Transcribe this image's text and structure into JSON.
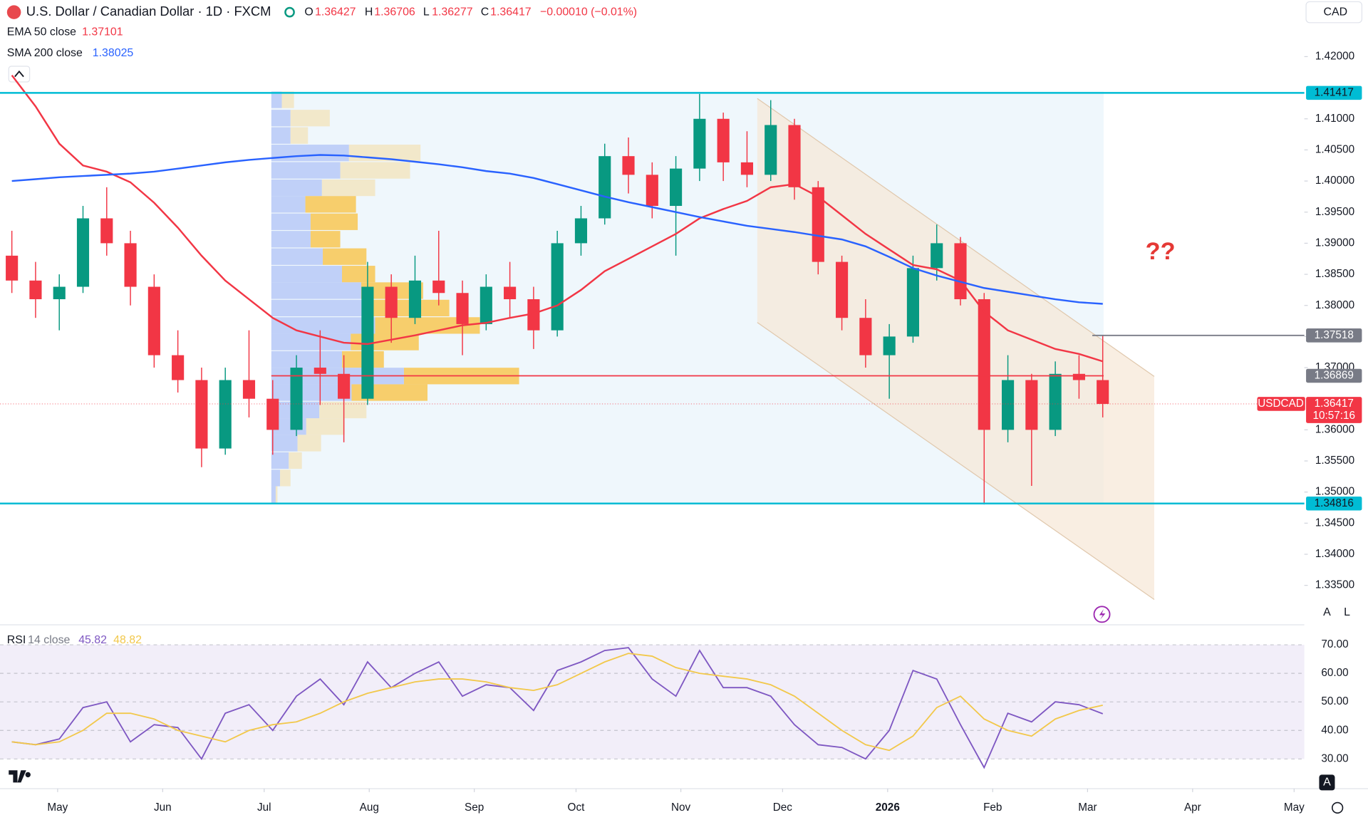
{
  "header": {
    "symbol_title": "U.S. Dollar / Canadian Dollar · 1D · FXCM",
    "o_label": "O",
    "open": "1.36427",
    "h_label": "H",
    "high": "1.36706",
    "l_label": "L",
    "low": "1.36277",
    "c_label": "C",
    "close": "1.36417",
    "change": "−0.00010 (−0.01%)",
    "currency": "CAD",
    "scale_buttons": [
      "A",
      "L"
    ],
    "rsi_scale_button": "A"
  },
  "chart_data": [
    {
      "type": "candlestick",
      "up_color": "#089981",
      "down_color": "#f23645",
      "open": [
        1.388,
        1.384,
        1.381,
        1.383,
        1.394,
        1.39,
        1.383,
        1.372,
        1.368,
        1.357,
        1.368,
        1.365,
        1.36,
        1.37,
        1.369,
        1.365,
        1.383,
        1.378,
        1.384,
        1.382,
        1.377,
        1.383,
        1.381,
        1.376,
        1.39,
        1.394,
        1.404,
        1.401,
        1.396,
        1.402,
        1.41,
        1.403,
        1.401,
        1.409,
        1.399,
        1.387,
        1.378,
        1.372,
        1.375,
        1.386,
        1.39,
        1.381,
        1.36,
        1.368,
        1.36,
        1.369,
        1.368
      ],
      "high": [
        1.392,
        1.387,
        1.385,
        1.396,
        1.399,
        1.392,
        1.385,
        1.376,
        1.37,
        1.37,
        1.376,
        1.368,
        1.372,
        1.376,
        1.372,
        1.387,
        1.385,
        1.388,
        1.392,
        1.384,
        1.385,
        1.387,
        1.383,
        1.392,
        1.396,
        1.406,
        1.407,
        1.403,
        1.404,
        1.414,
        1.411,
        1.408,
        1.413,
        1.41,
        1.4,
        1.388,
        1.381,
        1.377,
        1.388,
        1.393,
        1.391,
        1.382,
        1.372,
        1.369,
        1.371,
        1.372,
        1.3752
      ],
      "low": [
        1.382,
        1.378,
        1.376,
        1.382,
        1.388,
        1.38,
        1.37,
        1.366,
        1.354,
        1.356,
        1.362,
        1.356,
        1.359,
        1.364,
        1.358,
        1.364,
        1.374,
        1.377,
        1.38,
        1.372,
        1.376,
        1.378,
        1.373,
        1.375,
        1.388,
        1.393,
        1.398,
        1.394,
        1.388,
        1.4,
        1.4,
        1.399,
        1.4,
        1.397,
        1.385,
        1.376,
        1.37,
        1.365,
        1.374,
        1.384,
        1.38,
        1.348,
        1.358,
        1.351,
        1.359,
        1.365,
        1.362
      ],
      "close": [
        1.384,
        1.381,
        1.383,
        1.394,
        1.39,
        1.383,
        1.372,
        1.368,
        1.357,
        1.368,
        1.365,
        1.36,
        1.37,
        1.369,
        1.365,
        1.383,
        1.378,
        1.384,
        1.382,
        1.377,
        1.383,
        1.381,
        1.376,
        1.39,
        1.394,
        1.404,
        1.401,
        1.396,
        1.402,
        1.41,
        1.403,
        1.401,
        1.409,
        1.399,
        1.387,
        1.378,
        1.372,
        1.375,
        1.386,
        1.39,
        1.381,
        1.36,
        1.368,
        1.36,
        1.369,
        1.368,
        1.36417
      ],
      "series": [
        {
          "name": "EMA 50 close",
          "color": "#f23645",
          "values": [
            1.417,
            1.412,
            1.406,
            1.4025,
            1.4015,
            1.3998,
            1.3965,
            1.3925,
            1.388,
            1.384,
            1.381,
            1.378,
            1.376,
            1.375,
            1.374,
            1.3738,
            1.3745,
            1.3752,
            1.376,
            1.3768,
            1.3772,
            1.378,
            1.3787,
            1.38,
            1.3825,
            1.3855,
            1.3875,
            1.3895,
            1.3915,
            1.394,
            1.3955,
            1.3968,
            1.399,
            1.3995,
            1.3975,
            1.3945,
            1.3915,
            1.389,
            1.3865,
            1.3858,
            1.384,
            1.379,
            1.376,
            1.3745,
            1.373,
            1.3722,
            1.37101
          ]
        },
        {
          "name": "SMA 200 close",
          "color": "#2962ff",
          "values": [
            1.4,
            1.4003,
            1.4006,
            1.4008,
            1.401,
            1.4012,
            1.4015,
            1.402,
            1.4025,
            1.403,
            1.4034,
            1.4037,
            1.404,
            1.4042,
            1.4041,
            1.4038,
            1.4035,
            1.4031,
            1.4027,
            1.4022,
            1.4016,
            1.4012,
            1.4005,
            1.3995,
            1.3985,
            1.3975,
            1.3966,
            1.3958,
            1.395,
            1.3942,
            1.3935,
            1.3928,
            1.3923,
            1.3918,
            1.3912,
            1.3906,
            1.3895,
            1.3878,
            1.386,
            1.3848,
            1.3838,
            1.3828,
            1.3822,
            1.3816,
            1.381,
            1.3805,
            1.38025
          ]
        }
      ],
      "xlim": [
        0,
        55
      ],
      "xticks": [
        {
          "value": 2.43,
          "label": "May"
        },
        {
          "value": 6.86,
          "label": "Jun"
        },
        {
          "value": 11.14,
          "label": "Jul"
        },
        {
          "value": 15.57,
          "label": "Aug"
        },
        {
          "value": 20.0,
          "label": "Sep"
        },
        {
          "value": 24.29,
          "label": "Oct"
        },
        {
          "value": 28.71,
          "label": "Nov"
        },
        {
          "value": 33.0,
          "label": "Dec"
        },
        {
          "value": 37.43,
          "label": "2026"
        },
        {
          "value": 41.86,
          "label": "Feb"
        },
        {
          "value": 45.86,
          "label": "Mar"
        },
        {
          "value": 50.29,
          "label": "Apr"
        },
        {
          "value": 54.57,
          "label": "May"
        }
      ],
      "ylim": [
        1.3288,
        1.4291
      ],
      "yticks": [
        {
          "value": 1.335,
          "label": "1.33500"
        },
        {
          "value": 1.34,
          "label": "1.34000"
        },
        {
          "value": 1.345,
          "label": "1.34500"
        },
        {
          "value": 1.35,
          "label": "1.35000"
        },
        {
          "value": 1.355,
          "label": "1.35500"
        },
        {
          "value": 1.36,
          "label": "1.36000"
        },
        {
          "value": 1.37,
          "label": "1.37000"
        },
        {
          "value": 1.375,
          "label": "1.37500"
        },
        {
          "value": 1.38,
          "label": "1.38000"
        },
        {
          "value": 1.385,
          "label": "1.38500"
        },
        {
          "value": 1.39,
          "label": "1.39000"
        },
        {
          "value": 1.395,
          "label": "1.39500"
        },
        {
          "value": 1.4,
          "label": "1.40000"
        },
        {
          "value": 1.405,
          "label": "1.40500"
        },
        {
          "value": 1.41,
          "label": "1.41000"
        },
        {
          "value": 1.42,
          "label": "1.42000"
        }
      ],
      "levels": [
        {
          "value": 1.41417,
          "color": "#00bcd4",
          "label_color": "#00bcd4"
        },
        {
          "value": 1.34816,
          "color": "#00bcd4",
          "label_color": "#00bcd4"
        },
        {
          "value": 1.37518,
          "color": "#787b86",
          "label_color": "#787b86"
        },
        {
          "value": 1.36869,
          "color": "#f23645",
          "label_color": "#787b86"
        }
      ],
      "last_price": {
        "label": "USDCAD",
        "countdown": "10:57:16",
        "color": "#f23645"
      },
      "annotation": "??"
    },
    {
      "type": "line",
      "title": "RSI",
      "params": "14 close",
      "series": [
        {
          "name": "RSI",
          "color": "#7e57c2",
          "values": [
            36,
            35,
            37,
            48,
            50,
            36,
            42,
            41,
            30,
            46,
            49,
            40,
            52,
            58,
            49,
            64,
            55,
            60,
            64,
            52,
            56,
            55,
            47,
            61,
            64,
            68,
            69,
            58,
            52,
            68,
            55,
            55,
            52,
            42,
            35,
            34,
            30,
            40,
            61,
            58,
            42,
            27,
            46,
            43,
            50,
            49,
            45.82
          ]
        },
        {
          "color": "#f2c84b",
          "values": [
            36,
            35,
            36,
            40,
            46,
            46,
            44,
            40,
            38,
            36,
            40,
            42,
            43,
            46,
            50,
            53,
            55,
            57,
            58,
            58,
            57,
            55,
            54,
            56,
            60,
            64,
            67,
            66,
            62,
            60,
            59,
            58,
            56,
            52,
            46,
            40,
            35,
            33,
            38,
            48,
            52,
            44,
            40,
            38,
            44,
            47,
            48.82
          ]
        }
      ],
      "xlim": [
        0,
        55
      ],
      "ylim": [
        19.6,
        76.7
      ],
      "yticks": [
        {
          "value": 30,
          "label": "30.00"
        },
        {
          "value": 40,
          "label": "40.00"
        },
        {
          "value": 50,
          "label": "50.00"
        },
        {
          "value": 60,
          "label": "60.00"
        },
        {
          "value": 70,
          "label": "70.00"
        }
      ],
      "band": [
        30,
        70
      ],
      "band_color": "#7e57c2"
    }
  ]
}
